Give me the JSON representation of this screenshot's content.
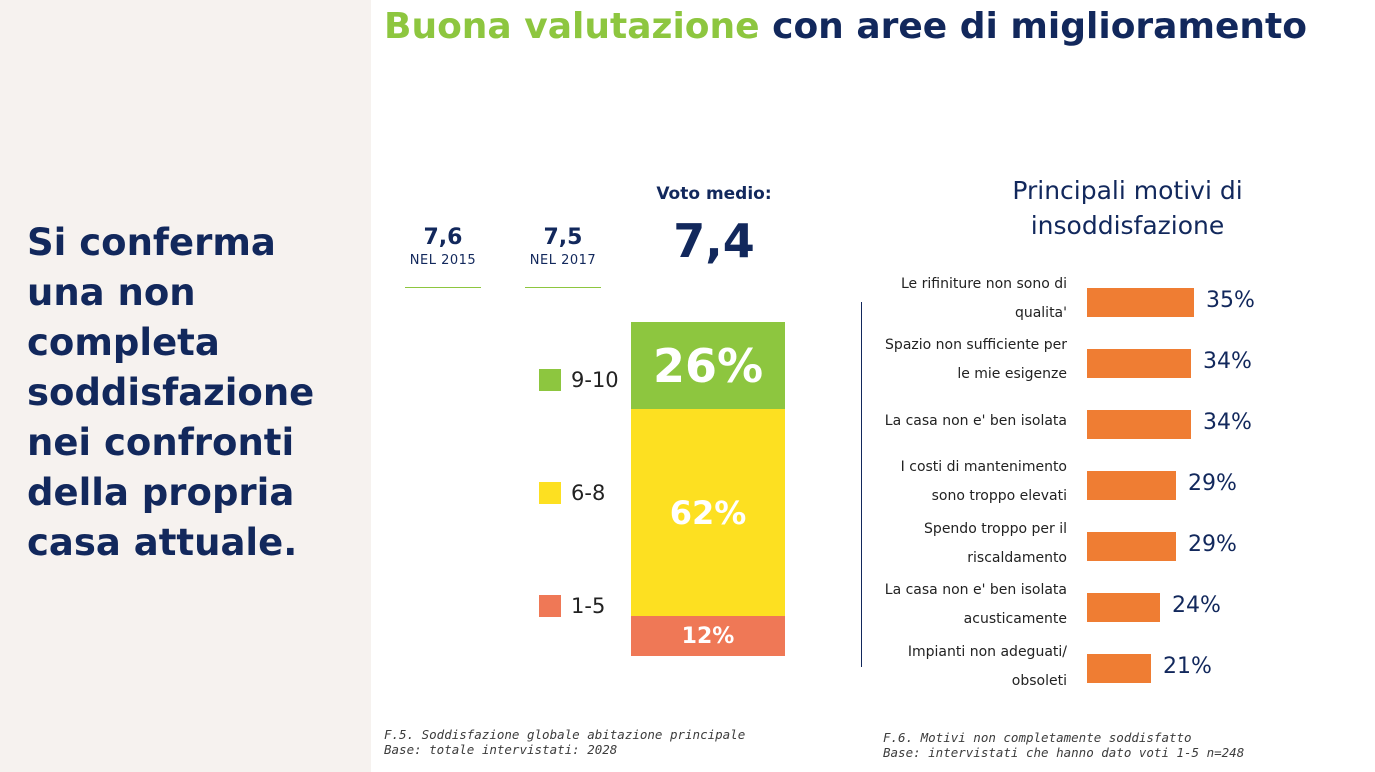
{
  "title": {
    "highlight": "Buona valutazione",
    "rest": "con aree di miglioramento"
  },
  "sidebar": {
    "text": "Si conferma una non completa soddisfazione nei confronti della propria casa attuale."
  },
  "previous": [
    {
      "value": "7,6",
      "year": "NEL 2015"
    },
    {
      "value": "7,5",
      "year": "NEL 2017"
    }
  ],
  "average": {
    "label": "Voto medio:",
    "value": "7,4"
  },
  "colors": {
    "green": "#8dc63f",
    "yellow": "#fde021",
    "salmon": "#ef7856",
    "orange": "#ef7d33",
    "navy": "#12285c"
  },
  "chart_data": [
    {
      "type": "bar",
      "stacked": true,
      "categories": [
        "9-10",
        "6-8",
        "1-5"
      ],
      "values": [
        26,
        62,
        12
      ],
      "labels": [
        "26%",
        "62%",
        "12%"
      ],
      "legend": [
        "9-10",
        "6-8",
        "1-5"
      ],
      "legend_position": "left"
    },
    {
      "type": "bar",
      "orientation": "horizontal",
      "title": "Principali motivi di insoddisfazione",
      "categories": [
        "Le rifiniture  non sono di qualita'",
        "Spazio non sufficiente per le mie esigenze",
        "La casa non e' ben isolata",
        "I costi di mantenimento sono troppo elevati",
        "Spendo troppo per il riscaldamento",
        "La casa non e' ben isolata acusticamente",
        "Impianti non  adeguati/ obsoleti"
      ],
      "values": [
        35,
        34,
        34,
        29,
        29,
        24,
        21
      ],
      "labels": [
        "35%",
        "34%",
        "34%",
        "29%",
        "29%",
        "24%",
        "21%"
      ]
    }
  ],
  "footnotes": {
    "left": [
      "F.5. Soddisfazione globale abitazione principale",
      "Base: totale intervistati: 2028"
    ],
    "right": [
      "F.6. Motivi non completamente soddisfatto",
      "Base: intervistati che hanno dato voti 1-5 n=248"
    ]
  }
}
